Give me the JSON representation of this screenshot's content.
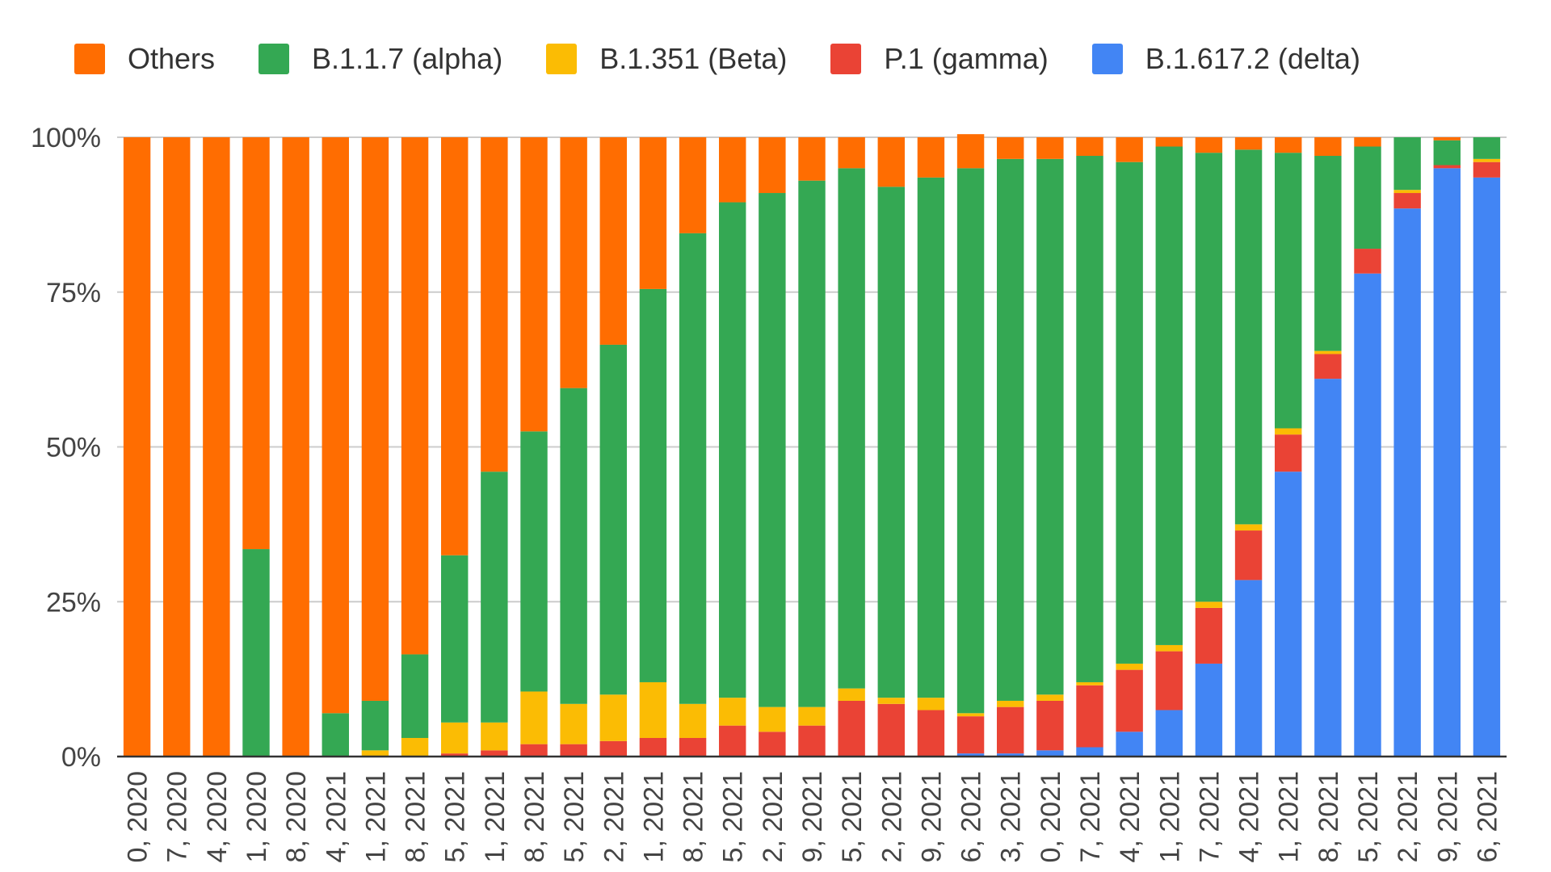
{
  "chart_data": {
    "type": "bar",
    "stacked": true,
    "normalized": true,
    "title": "",
    "xlabel": "",
    "ylabel": "",
    "ylim": [
      0,
      100
    ],
    "y_tick_labels": [
      "0%",
      "25%",
      "50%",
      "75%",
      "100%"
    ],
    "grid": true,
    "legend_position": "top",
    "categories": [
      "0, 2020",
      "7, 2020",
      "4, 2020",
      "1, 2020",
      "8, 2020",
      "4, 2021",
      "1, 2021",
      "8, 2021",
      "5, 2021",
      "1, 2021",
      "8, 2021",
      "5, 2021",
      "2, 2021",
      "1, 2021",
      "8, 2021",
      "5, 2021",
      "2, 2021",
      "9, 2021",
      "5, 2021",
      "2, 2021",
      "9, 2021",
      "6, 2021",
      "3, 2021",
      "0, 2021",
      "7, 2021",
      "4, 2021",
      "1, 2021",
      "7, 2021",
      "4, 2021",
      "1, 2021",
      "8, 2021",
      "5, 2021",
      "2, 2021",
      "9, 2021",
      "6, 2021"
    ],
    "series": [
      {
        "name": "B.1.617.2 (delta)",
        "color": "#4285F4",
        "values": [
          0,
          0,
          0,
          0,
          0,
          0,
          0,
          0,
          0,
          0,
          0,
          0,
          0,
          0,
          0,
          0,
          0,
          0,
          0,
          0,
          0,
          0.5,
          0.5,
          1,
          1.5,
          4,
          7.5,
          15,
          28.5,
          46,
          61,
          78,
          88.5,
          95,
          93.5
        ]
      },
      {
        "name": "P.1 (gamma)",
        "color": "#EA4335",
        "values": [
          0,
          0,
          0,
          0,
          0,
          0,
          0,
          0,
          0.5,
          1,
          2,
          2,
          2.5,
          3,
          3,
          5,
          4,
          5,
          9,
          8.5,
          7.5,
          6,
          7.5,
          8,
          10,
          10,
          9.5,
          9,
          8,
          6,
          4,
          4,
          2.5,
          0.5,
          2.5
        ]
      },
      {
        "name": "B.1.351 (Beta)",
        "color": "#FBBC04",
        "values": [
          0,
          0,
          0,
          0,
          0,
          0,
          1,
          3,
          5,
          4.5,
          8.5,
          6.5,
          7.5,
          9,
          5.5,
          4.5,
          4,
          3,
          2,
          1,
          2,
          0.5,
          1,
          1,
          0.5,
          1,
          1,
          1,
          1,
          1,
          0.5,
          0,
          0.5,
          0,
          0.5
        ]
      },
      {
        "name": "B.1.1.7 (alpha)",
        "color": "#34A853",
        "values": [
          0,
          0,
          0,
          33.5,
          0,
          7,
          8,
          13.5,
          27,
          40.5,
          42,
          51,
          56.5,
          63.5,
          76,
          80,
          83,
          85,
          84,
          82.5,
          84,
          88,
          87.5,
          86.5,
          85,
          81,
          80.5,
          72.5,
          60.5,
          44.5,
          31.5,
          16.5,
          8.5,
          4,
          3.5
        ]
      },
      {
        "name": "Others",
        "color": "#FF6D01",
        "values": [
          100,
          100,
          100,
          66.5,
          100,
          93,
          91,
          83.5,
          67.5,
          54,
          47.5,
          40.5,
          33.5,
          24.5,
          15.5,
          10.5,
          9,
          7,
          5,
          8,
          6.5,
          5.5,
          3.5,
          3.5,
          3,
          4,
          1.5,
          2.5,
          2,
          2.5,
          3,
          1.5,
          0,
          0.5,
          0
        ]
      }
    ],
    "legend_order": [
      "Others",
      "B.1.1.7 (alpha)",
      "B.1.351 (Beta)",
      "P.1 (gamma)",
      "B.1.617.2 (delta)"
    ]
  }
}
